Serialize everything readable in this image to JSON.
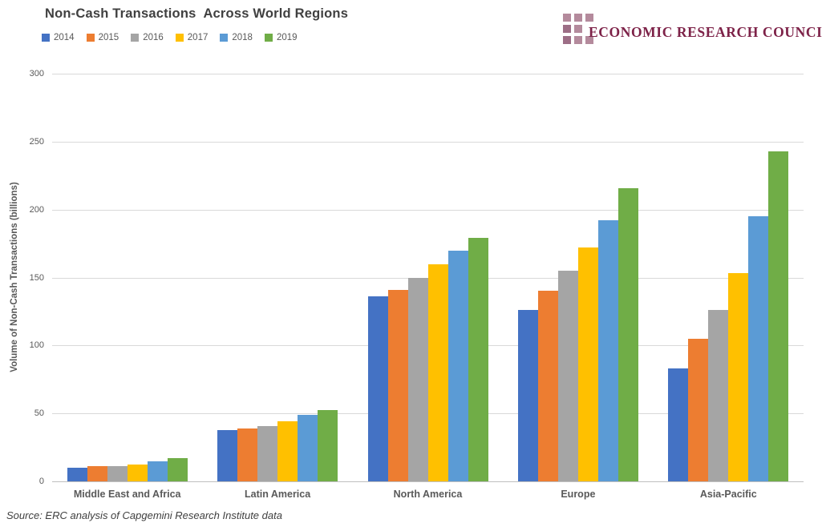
{
  "header": {
    "title": "Non-Cash Transactions  Across World Regions"
  },
  "logo": {
    "text": "ECONOMIC RESEARCH COUNCIL",
    "text_color": "#7d2248",
    "square_color": "#b48a9c",
    "square_dark_color": "#9d6e86",
    "squares_pattern": [
      1,
      1,
      1,
      2,
      1,
      0,
      2,
      1,
      1
    ]
  },
  "chart_data": {
    "type": "bar",
    "title": "Non-Cash Transactions Across World Regions",
    "categories": [
      "Middle East and Africa",
      "Latin America",
      "North America",
      "Europe",
      "Asia-Pacific"
    ],
    "series": [
      {
        "name": "2014",
        "color": "#4472c4",
        "values": [
          10,
          37.5,
          136,
          126,
          83
        ]
      },
      {
        "name": "2015",
        "color": "#ed7d31",
        "values": [
          11,
          39,
          141,
          140,
          105
        ]
      },
      {
        "name": "2016",
        "color": "#a5a5a5",
        "values": [
          11,
          40.5,
          150,
          155,
          126
        ]
      },
      {
        "name": "2017",
        "color": "#ffc000",
        "values": [
          12.5,
          44,
          160,
          172,
          153
        ]
      },
      {
        "name": "2018",
        "color": "#5b9bd5",
        "values": [
          14.5,
          49,
          170,
          192,
          195
        ]
      },
      {
        "name": "2019",
        "color": "#70ad47",
        "values": [
          17,
          52.5,
          179,
          216,
          243
        ]
      }
    ],
    "xlabel": "",
    "ylabel": "Volume of Non-Cash Transactions (billions)",
    "ylim": [
      0,
      300
    ],
    "yticks": [
      0,
      50,
      100,
      150,
      200,
      250,
      300
    ],
    "grid": true,
    "legend_position": "top-left",
    "colors": {
      "gridline": "#d9d9d9",
      "axis_line": "#bfbfbf",
      "tick_text": "#595959",
      "title_text": "#404040"
    }
  },
  "footer": {
    "source": "Source: ERC analysis of Capgemini Research Institute data"
  }
}
